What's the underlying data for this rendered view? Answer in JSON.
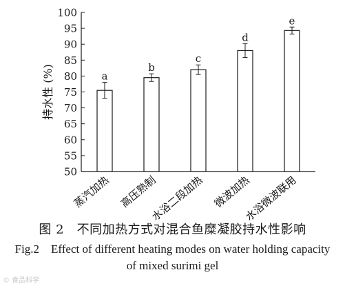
{
  "chart_data": {
    "type": "bar",
    "categories": [
      "蒸汽加热",
      "高压熟制",
      "水浴二段加热",
      "微波加热",
      "水浴微波联用"
    ],
    "values": [
      75.5,
      79.5,
      82,
      88,
      94.3
    ],
    "errors": [
      2.5,
      1.2,
      1.5,
      2.2,
      1.1
    ],
    "significance": [
      "a",
      "b",
      "c",
      "d",
      "e"
    ],
    "ylabel": "持水性 (%)",
    "xlabel": "",
    "ylim": [
      50,
      100
    ],
    "yticks": [
      50,
      55,
      60,
      65,
      70,
      75,
      80,
      85,
      90,
      95,
      100
    ],
    "grid": false
  },
  "caption": {
    "cn": "图 2　不同加热方式对混合鱼糜凝胶持水性影响",
    "en": "Fig.2　Effect of different heating modes on water holding capacity of mixed surimi gel"
  },
  "watermark": "© 食品科学"
}
